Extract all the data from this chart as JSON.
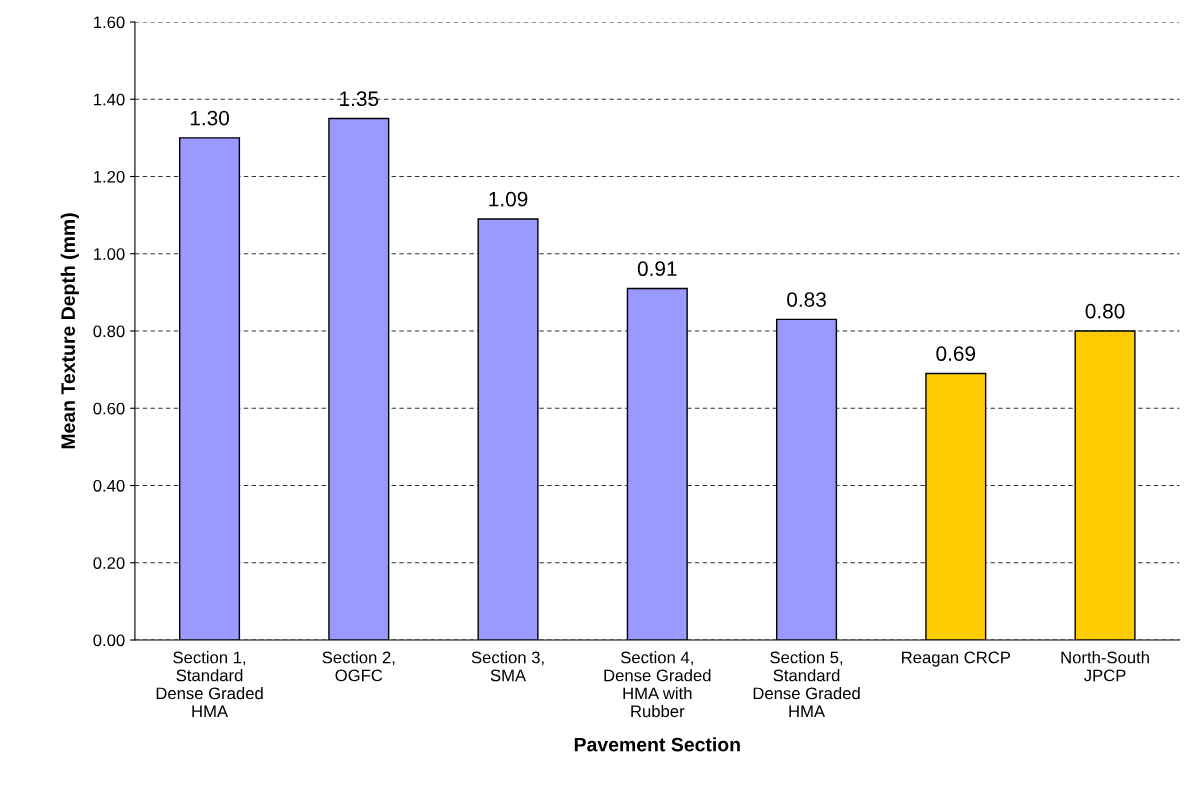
{
  "chart_data": {
    "type": "bar",
    "xlabel": "Pavement Section",
    "ylabel": "Mean Texture Depth (mm)",
    "categories": [
      "Section 1,\nStandard\nDense Graded\nHMA",
      "Section 2,\nOGFC",
      "Section 3,\nSMA",
      "Section 4,\nDense Graded\nHMA with\nRubber",
      "Section 5,\nStandard\nDense Graded\nHMA",
      "Reagan CRCP",
      "North-South\nJPCP"
    ],
    "values": [
      1.3,
      1.35,
      1.09,
      0.91,
      0.83,
      0.69,
      0.8
    ],
    "value_labels": [
      "1.30",
      "1.35",
      "1.09",
      "0.91",
      "0.83",
      "0.69",
      "0.80"
    ],
    "colors": [
      "#9999ff",
      "#9999ff",
      "#9999ff",
      "#9999ff",
      "#9999ff",
      "#ffcc00",
      "#ffcc00"
    ],
    "ylim": [
      0,
      1.6
    ],
    "yticks": [
      {
        "value": 0,
        "label": "0.00"
      },
      {
        "value": 0.2,
        "label": "0.20"
      },
      {
        "value": 0.4,
        "label": "0.40"
      },
      {
        "value": 0.6,
        "label": "0.60"
      },
      {
        "value": 0.8,
        "label": "0.80"
      },
      {
        "value": 1.0,
        "label": "1.00"
      },
      {
        "value": 1.2,
        "label": "1.20"
      },
      {
        "value": 1.4,
        "label": "1.40"
      },
      {
        "value": 1.6,
        "label": "1.60"
      }
    ],
    "grid": "y",
    "legend": false
  }
}
